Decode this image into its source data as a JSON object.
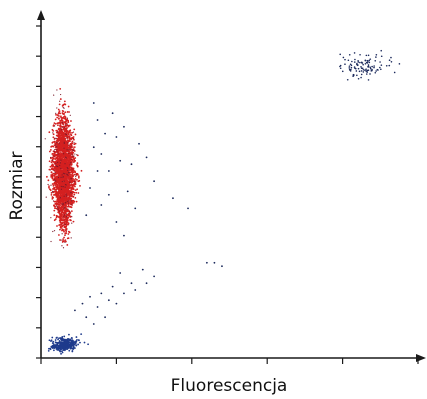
{
  "chart_data": {
    "type": "scatter",
    "title": "",
    "xlabel": "Fluorescencja",
    "ylabel": "Rozmiar",
    "grid": false,
    "legend": "none",
    "xlim": [
      0,
      100
    ],
    "ylim": [
      0,
      100
    ],
    "x_tick_count": 6,
    "y_tick_count": 12,
    "colors": {
      "axis": "#1a1a1a",
      "red": "#d42020",
      "dark": "#1c2a5c",
      "navy": "#1f3b8c"
    },
    "series": [
      {
        "color": "#d42020",
        "shape": "elongated dense cluster near the vertical axis",
        "x_range": [
          1,
          12
        ],
        "y_range": [
          27,
          99
        ],
        "center": [
          6,
          55
        ],
        "approx_count": 2500
      },
      {
        "color": "#1f3b8c",
        "shape": "dense cluster at the origin",
        "x_range": [
          0,
          15
        ],
        "y_range": [
          0,
          10
        ],
        "center": [
          5,
          3
        ],
        "approx_count": 350
      },
      {
        "color": "#1c2a5c",
        "shape": "sparse diagonal trail and scattered points",
        "points": [
          [
            9,
            14
          ],
          [
            12,
            12
          ],
          [
            15,
            15
          ],
          [
            18,
            17
          ],
          [
            20,
            16
          ],
          [
            22,
            19
          ],
          [
            25,
            20
          ],
          [
            28,
            22
          ],
          [
            30,
            24
          ],
          [
            24,
            22
          ],
          [
            17,
            12
          ],
          [
            14,
            10
          ],
          [
            11,
            16
          ],
          [
            19,
            21
          ],
          [
            27,
            26
          ],
          [
            21,
            25
          ],
          [
            16,
            19
          ],
          [
            13,
            18
          ],
          [
            30,
            52
          ],
          [
            35,
            47
          ],
          [
            39,
            44
          ],
          [
            44,
            28
          ],
          [
            46,
            28
          ],
          [
            48,
            27
          ],
          [
            20,
            40
          ],
          [
            22,
            36
          ],
          [
            25,
            44
          ],
          [
            18,
            48
          ],
          [
            15,
            55
          ],
          [
            14,
            62
          ],
          [
            16,
            60
          ],
          [
            13,
            50
          ],
          [
            12,
            42
          ],
          [
            18,
            55
          ],
          [
            17,
            66
          ],
          [
            21,
            58
          ],
          [
            15,
            70
          ],
          [
            14,
            75
          ],
          [
            19,
            72
          ],
          [
            23,
            49
          ],
          [
            16,
            45
          ],
          [
            24,
            57
          ],
          [
            26,
            63
          ],
          [
            28,
            59
          ],
          [
            20,
            65
          ],
          [
            22,
            68
          ]
        ]
      },
      {
        "color": "#1c2a5c",
        "shape": "sparse high-fluorescence group in the upper right",
        "x_range": [
          70,
          100
        ],
        "y_range": [
          77,
          95
        ],
        "approx_count": 110
      }
    ]
  }
}
